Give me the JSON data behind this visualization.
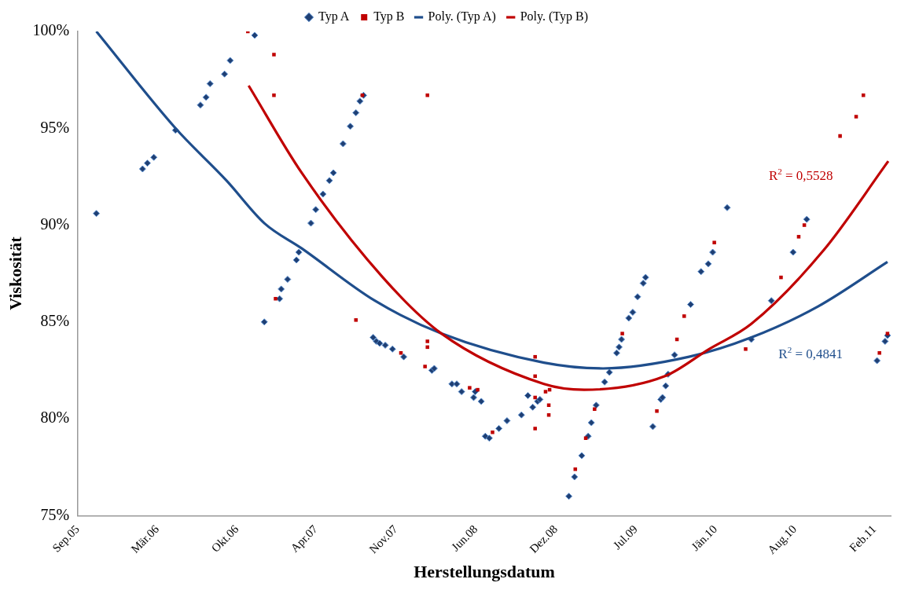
{
  "chart_data": {
    "type": "scatter",
    "xlabel": "Herstellungsdatum",
    "ylabel": "Viskosität",
    "legend": "top",
    "grid": false,
    "xlim": [
      "2005-09-14",
      "2011-03-30"
    ],
    "xticks": [
      {
        "value": "2005-09-14",
        "label": "Sep.05"
      },
      {
        "value": "2006-03-31",
        "label": "Mär.06"
      },
      {
        "value": "2006-10-15",
        "label": "Okt.06"
      },
      {
        "value": "2007-04-30",
        "label": "Apr.07"
      },
      {
        "value": "2007-11-15",
        "label": "Nov.07"
      },
      {
        "value": "2008-06-01",
        "label": "Jun.08"
      },
      {
        "value": "2008-12-17",
        "label": "Dez.08"
      },
      {
        "value": "2009-07-04",
        "label": "Jul.09"
      },
      {
        "value": "2010-01-18",
        "label": "Jän.10"
      },
      {
        "value": "2010-08-04",
        "label": "Aug.10"
      },
      {
        "value": "2011-02-18",
        "label": "Feb.11"
      }
    ],
    "ylim": [
      75,
      100
    ],
    "yticks": [
      {
        "value": 75,
        "label": "75%"
      },
      {
        "value": 80,
        "label": "80%"
      },
      {
        "value": 85,
        "label": "85%"
      },
      {
        "value": 90,
        "label": "90%"
      },
      {
        "value": 95,
        "label": "95%"
      },
      {
        "value": 100,
        "label": "100%"
      }
    ],
    "series": [
      {
        "name": "Typ A",
        "type": "scatter",
        "marker": "diamond",
        "color": "#1f3f73",
        "x": [
          "2005-10-30",
          "2006-02-22",
          "2006-03-06",
          "2006-03-22",
          "2006-05-15",
          "2006-07-16",
          "2006-07-30",
          "2006-08-09",
          "2006-09-14",
          "2006-09-28",
          "2006-11-28",
          "2006-12-22",
          "2007-01-29",
          "2007-02-02",
          "2007-02-18",
          "2007-03-12",
          "2007-03-18",
          "2007-04-17",
          "2007-04-29",
          "2007-05-17",
          "2007-06-02",
          "2007-06-12",
          "2007-07-06",
          "2007-07-24",
          "2007-08-07",
          "2007-08-17",
          "2007-08-26",
          "2007-09-19",
          "2007-09-27",
          "2007-10-05",
          "2007-10-19",
          "2007-11-06",
          "2007-12-04",
          "2008-02-12",
          "2008-02-18",
          "2008-04-02",
          "2008-04-14",
          "2008-04-26",
          "2008-05-26",
          "2008-05-30",
          "2008-06-14",
          "2008-06-24",
          "2008-07-04",
          "2008-07-28",
          "2008-08-17",
          "2008-09-22",
          "2008-10-08",
          "2008-10-20",
          "2008-11-01",
          "2008-11-07",
          "2009-01-18",
          "2009-02-01",
          "2009-02-19",
          "2009-03-07",
          "2009-03-15",
          "2009-03-27",
          "2009-04-17",
          "2009-04-29",
          "2009-05-17",
          "2009-05-23",
          "2009-05-29",
          "2009-06-16",
          "2009-06-26",
          "2009-07-08",
          "2009-07-22",
          "2009-07-28",
          "2009-08-15",
          "2009-09-04",
          "2009-09-08",
          "2009-09-16",
          "2009-09-22",
          "2009-10-08",
          "2009-11-17",
          "2009-12-13",
          "2009-12-31",
          "2010-01-11",
          "2010-02-16",
          "2010-04-17",
          "2010-06-06",
          "2010-07-30",
          "2010-09-02",
          "2011-02-24",
          "2011-03-16",
          "2011-03-22"
        ],
        "values": [
          90.6,
          92.9,
          93.2,
          93.5,
          94.9,
          96.2,
          96.6,
          97.3,
          97.8,
          98.5,
          99.8,
          85.0,
          86.2,
          86.7,
          87.2,
          88.2,
          88.6,
          90.1,
          90.8,
          91.6,
          92.3,
          92.7,
          94.2,
          95.1,
          95.8,
          96.4,
          96.7,
          84.2,
          84.0,
          83.9,
          83.8,
          83.6,
          83.2,
          82.5,
          82.6,
          81.8,
          81.8,
          81.4,
          81.1,
          81.4,
          80.9,
          79.1,
          79.0,
          79.5,
          79.9,
          80.2,
          81.2,
          80.6,
          80.9,
          81.0,
          76.0,
          77.0,
          78.1,
          79.1,
          79.8,
          80.7,
          81.9,
          82.4,
          83.4,
          83.7,
          84.1,
          85.2,
          85.5,
          86.3,
          87.0,
          87.3,
          79.6,
          81.0,
          81.1,
          81.7,
          82.3,
          83.3,
          85.9,
          87.6,
          88.0,
          88.6,
          90.9,
          84.1,
          86.1,
          88.6,
          90.3,
          83.0,
          84.0,
          84.3
        ]
      },
      {
        "name": "Typ B",
        "type": "scatter",
        "marker": "square",
        "color": "#c00000",
        "x": [
          "2006-11-11",
          "2007-01-15",
          "2007-01-15",
          "2007-01-19",
          "2007-08-07",
          "2007-08-23",
          "2007-11-27",
          "2008-01-26",
          "2008-02-01",
          "2008-02-01",
          "2008-02-01",
          "2008-05-16",
          "2008-06-05",
          "2008-07-12",
          "2008-10-26",
          "2008-10-26",
          "2008-10-26",
          "2008-10-26",
          "2008-11-21",
          "2008-12-01",
          "2008-11-29",
          "2008-11-29",
          "2009-02-03",
          "2009-03-01",
          "2009-03-23",
          "2009-05-31",
          "2009-08-25",
          "2009-10-14",
          "2009-11-01",
          "2010-01-15",
          "2010-04-03",
          "2010-06-30",
          "2010-08-13",
          "2010-08-27",
          "2010-11-24",
          "2011-01-03",
          "2011-01-21",
          "2011-03-02",
          "2011-03-22"
        ],
        "values": [
          100.0,
          98.8,
          96.7,
          86.2,
          85.1,
          96.7,
          83.4,
          82.7,
          84.0,
          83.7,
          96.7,
          81.6,
          81.5,
          79.3,
          83.2,
          82.2,
          81.1,
          79.5,
          81.4,
          81.5,
          80.7,
          80.2,
          77.4,
          79.0,
          80.5,
          84.4,
          80.4,
          84.1,
          85.3,
          89.1,
          83.6,
          87.3,
          89.4,
          90.0,
          94.6,
          95.6,
          96.7,
          83.4,
          84.4
        ]
      },
      {
        "name": "Poly. (Typ A)",
        "type": "line",
        "marker": "none",
        "color": "#1f4e8c",
        "x": [
          "2005-10-30",
          "2006-05-15",
          "2006-09-19",
          "2006-12-22",
          "2007-03-25",
          "2007-09-23",
          "2008-03-07",
          "2008-11-17",
          "2009-04-13",
          "2009-11-13",
          "2010-04-17",
          "2010-09-30",
          "2011-03-22"
        ],
        "values": [
          100.0,
          95.0,
          92.3,
          90.1,
          88.8,
          86.1,
          84.4,
          82.9,
          82.6,
          83.2,
          84.2,
          85.8,
          88.1
        ]
      },
      {
        "name": "Poly. (Typ B)",
        "type": "line",
        "marker": "none",
        "color": "#c00000",
        "x": [
          "2006-11-13",
          "2007-03-25",
          "2007-10-13",
          "2008-03-07",
          "2008-11-17",
          "2009-02-25",
          "2009-09-14",
          "2010-01-02",
          "2010-04-17",
          "2010-10-14",
          "2011-03-24"
        ],
        "values": [
          97.2,
          92.7,
          87.3,
          84.4,
          81.8,
          81.5,
          82.2,
          83.6,
          84.9,
          88.7,
          93.3
        ]
      }
    ],
    "annotations": [
      "R$^{2}$ = 0,4841",
      "R$^{2}$ = 0,5528"
    ]
  }
}
